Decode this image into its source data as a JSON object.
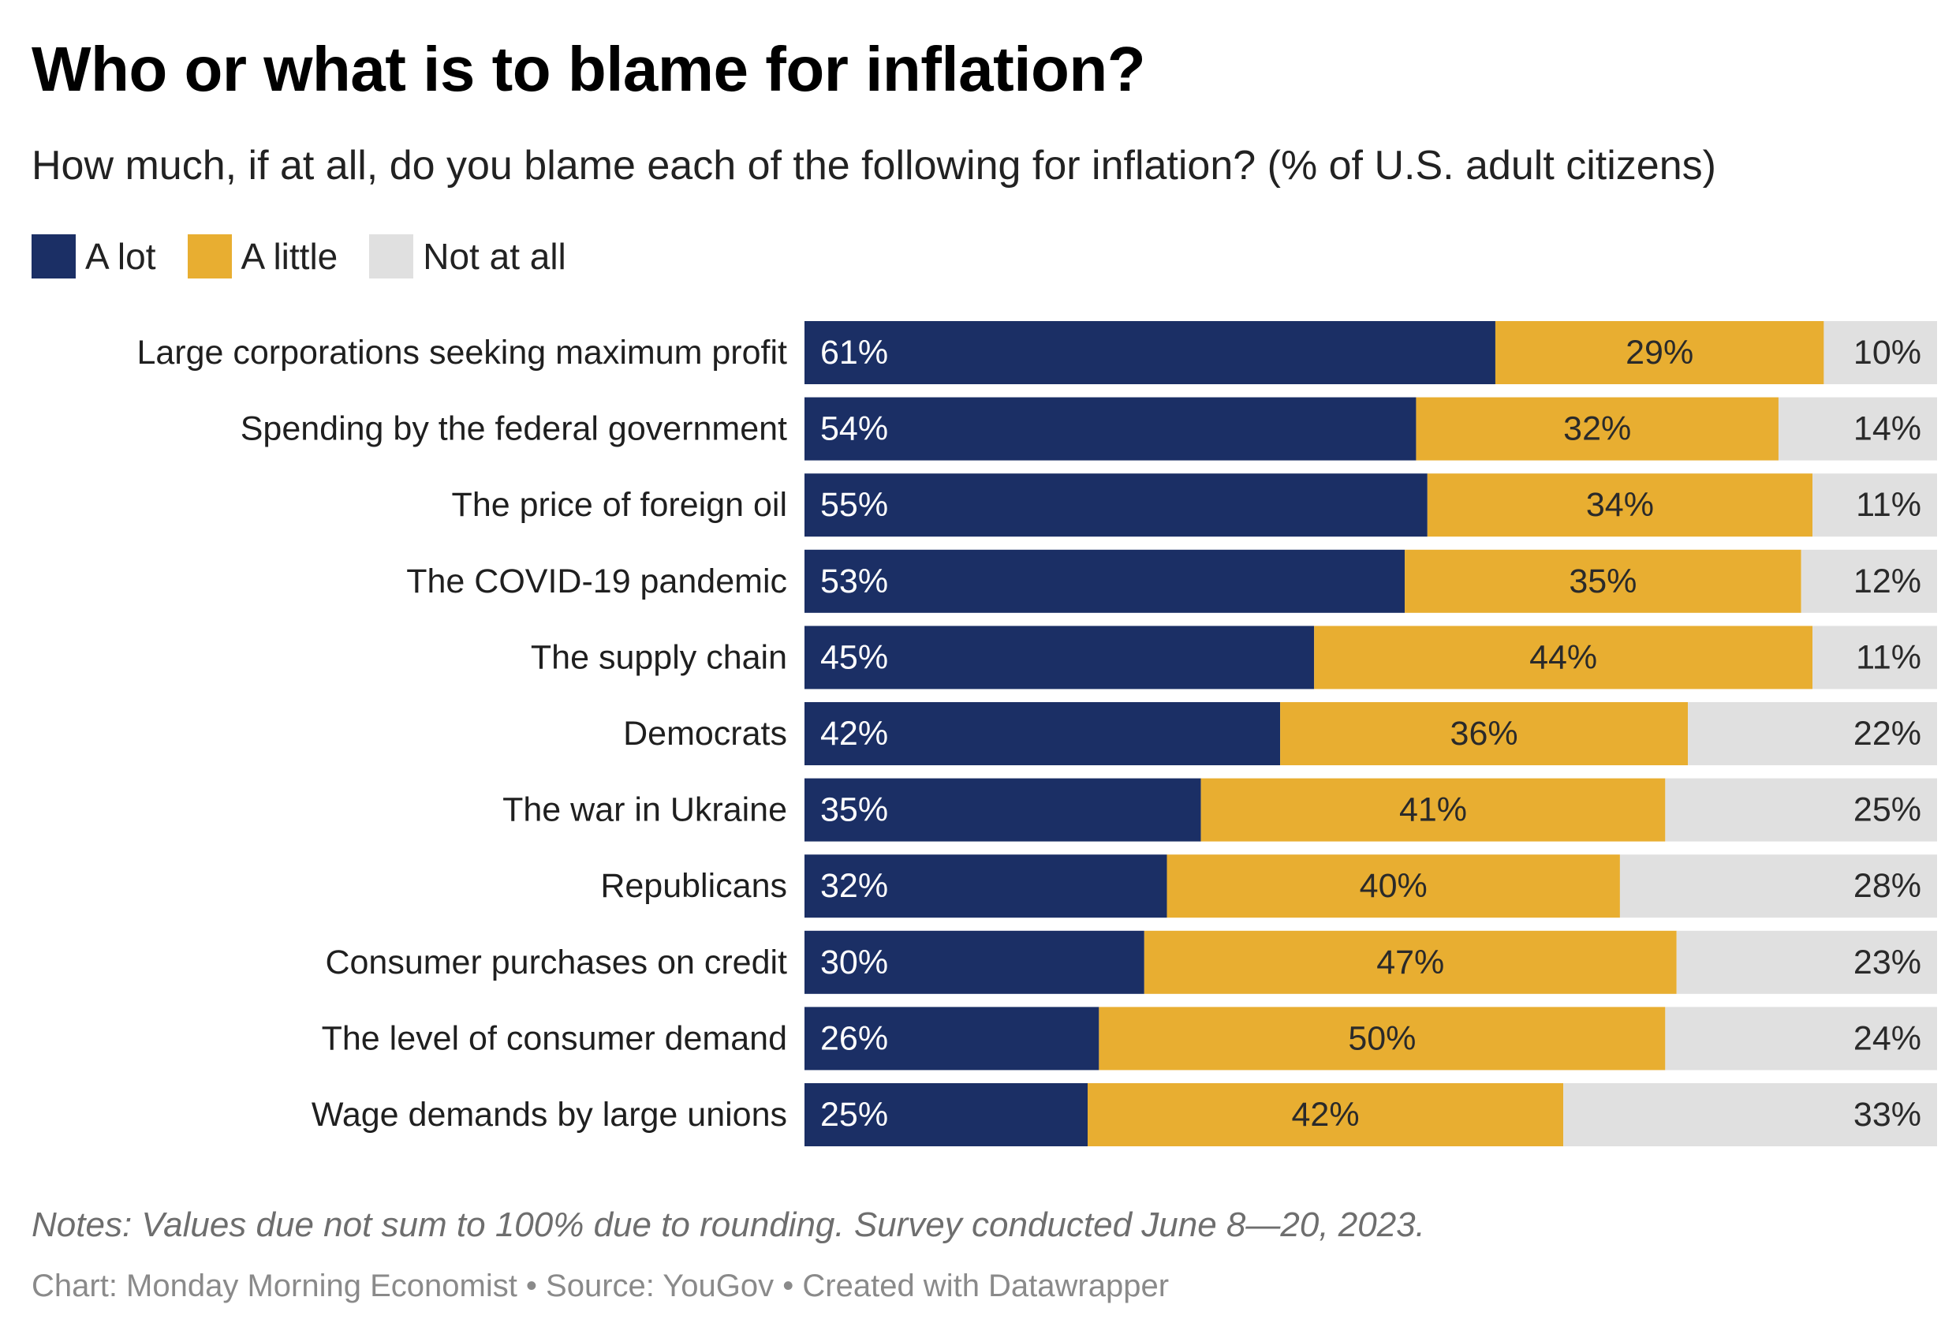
{
  "chart_data": {
    "type": "bar",
    "orientation": "horizontal",
    "stacked": true,
    "title": "Who or what is to blame for inflation?",
    "subtitle": "How much, if at all, do you blame each of the following for inflation? (% of U.S. adult citizens)",
    "categories": [
      "Large corporations seeking maximum profit",
      "Spending by the federal government",
      "The price of foreign oil",
      "The COVID-19 pandemic",
      "The supply chain",
      "Democrats",
      "The war in Ukraine",
      "Republicans",
      "Consumer purchases on credit",
      "The level of consumer demand",
      "Wage demands by large unions"
    ],
    "series": [
      {
        "name": "A lot",
        "color": "#1b2f65",
        "label_color": "#ffffff",
        "values": [
          61,
          54,
          55,
          53,
          45,
          42,
          35,
          32,
          30,
          26,
          25
        ]
      },
      {
        "name": "A little",
        "color": "#e8ae31",
        "label_color": "#2a2a2a",
        "values": [
          29,
          32,
          34,
          35,
          44,
          36,
          41,
          40,
          47,
          50,
          42
        ]
      },
      {
        "name": "Not at all",
        "color": "#e0e0e0",
        "label_color": "#2a2a2a",
        "values": [
          10,
          14,
          11,
          12,
          11,
          22,
          25,
          28,
          23,
          24,
          33
        ]
      }
    ],
    "value_suffix": "%",
    "xlim": [
      0,
      100
    ],
    "xlabel": "",
    "ylabel": "",
    "legend_position": "top-left",
    "grid": false
  },
  "notes": "Notes: Values due not sum to 100% due to rounding. Survey conducted June 8—20, 2023.",
  "credits": "Chart: Monday Morning Economist • Source: YouGov • Created with Datawrapper"
}
